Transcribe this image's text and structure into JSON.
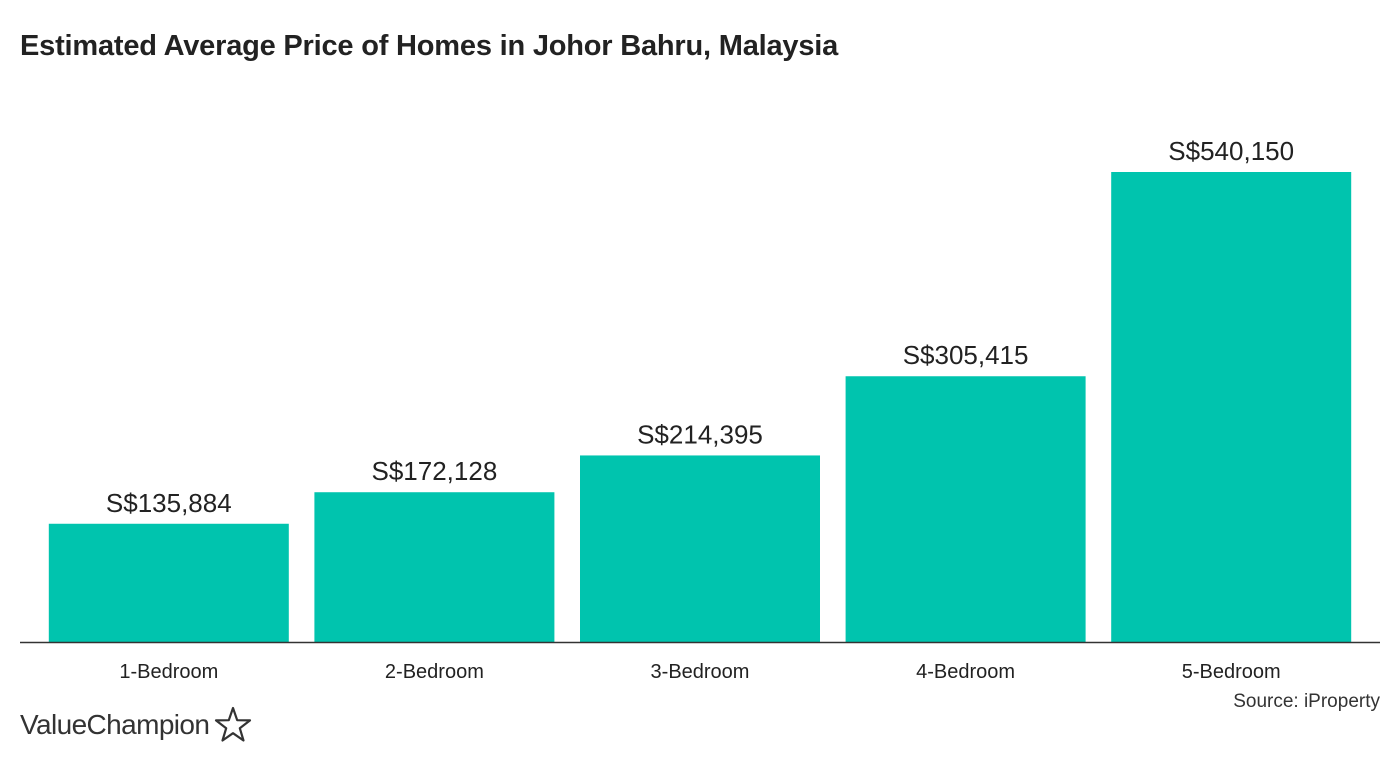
{
  "title": "Estimated Average Price of Homes in Johor Bahru, Malaysia",
  "source": "Source: iProperty",
  "brand": {
    "name": "ValueChampion",
    "icon": "star-outline-icon"
  },
  "colors": {
    "bar": "#00c4ae",
    "axis": "#333333",
    "text": "#222222"
  },
  "chart_data": {
    "type": "bar",
    "title": "Estimated Average Price of Homes in Johor Bahru, Malaysia",
    "xlabel": "",
    "ylabel": "",
    "categories": [
      "1-Bedroom",
      "2-Bedroom",
      "3-Bedroom",
      "4-Bedroom",
      "5-Bedroom"
    ],
    "values": [
      135884,
      172128,
      214395,
      305415,
      540150
    ],
    "data_labels": [
      "S$135,884",
      "S$172,128",
      "S$214,395",
      "S$305,415",
      "S$540,150"
    ],
    "ylim": [
      0,
      540150
    ],
    "grid": false,
    "legend": "none"
  }
}
